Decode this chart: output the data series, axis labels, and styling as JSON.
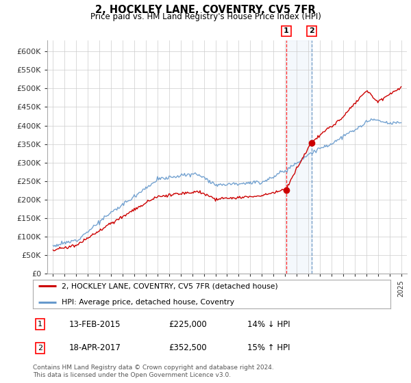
{
  "title": "2, HOCKLEY LANE, COVENTRY, CV5 7FR",
  "subtitle": "Price paid vs. HM Land Registry's House Price Index (HPI)",
  "footer": "Contains HM Land Registry data © Crown copyright and database right 2024.\nThis data is licensed under the Open Government Licence v3.0.",
  "legend_line1": "2, HOCKLEY LANE, COVENTRY, CV5 7FR (detached house)",
  "legend_line2": "HPI: Average price, detached house, Coventry",
  "transaction1_date": "13-FEB-2015",
  "transaction1_price": "£225,000",
  "transaction1_hpi": "14% ↓ HPI",
  "transaction2_date": "18-APR-2017",
  "transaction2_price": "£352,500",
  "transaction2_hpi": "15% ↑ HPI",
  "background_color": "#ffffff",
  "grid_color": "#cccccc",
  "hpi_line_color": "#6699cc",
  "price_line_color": "#cc0000",
  "transaction1_x": 2015.1,
  "transaction2_x": 2017.3,
  "transaction1_y": 225000,
  "transaction2_y": 352500,
  "ylim_min": 0,
  "ylim_max": 630000,
  "xlim_min": 1994.5,
  "xlim_max": 2025.5,
  "yticks": [
    0,
    50000,
    100000,
    150000,
    200000,
    250000,
    300000,
    350000,
    400000,
    450000,
    500000,
    550000,
    600000
  ],
  "ytick_labels": [
    "£0",
    "£50K",
    "£100K",
    "£150K",
    "£200K",
    "£250K",
    "£300K",
    "£350K",
    "£400K",
    "£450K",
    "£500K",
    "£550K",
    "£600K"
  ]
}
